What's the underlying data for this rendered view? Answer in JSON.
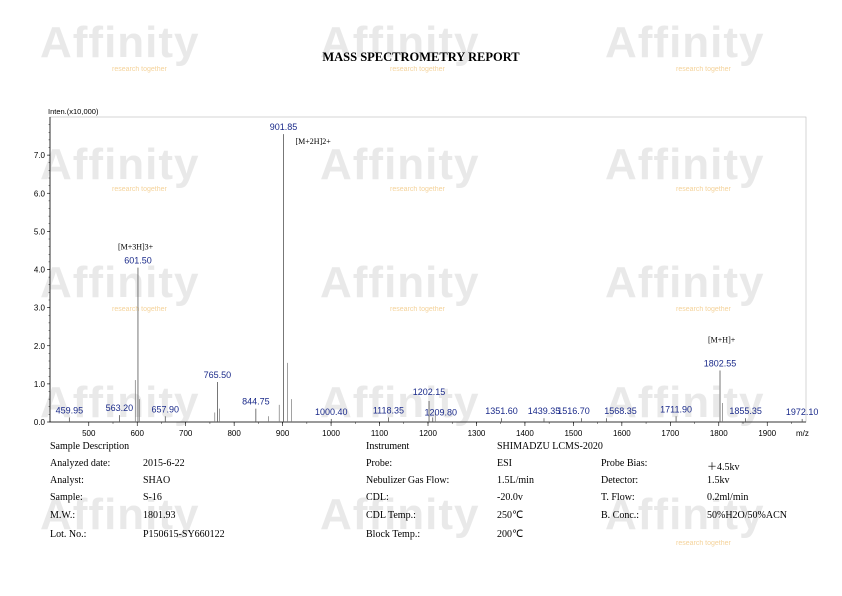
{
  "report": {
    "title": "MASS SPECTROMETRY REPORT"
  },
  "watermark": {
    "brand": "Affinity",
    "tagline": "research together"
  },
  "chart_data": {
    "type": "line",
    "ylabel": "Inten.(x10,000)",
    "xlabel": "m/z",
    "xlim": [
      420,
      1980
    ],
    "ylim": [
      0,
      8.0
    ],
    "x_ticks": [
      500,
      600,
      700,
      800,
      900,
      1000,
      1100,
      1200,
      1300,
      1400,
      1500,
      1600,
      1700,
      1800,
      1900
    ],
    "y_ticks": [
      0.0,
      1.0,
      2.0,
      3.0,
      4.0,
      5.0,
      6.0,
      7.0
    ],
    "y_tick_labels": [
      "0.0",
      "1.0",
      "2.0",
      "3.0",
      "4.0",
      "5.0",
      "6.0",
      "7.0"
    ],
    "labeled_peaks": [
      {
        "mz": 459.95,
        "intensity": 0.12,
        "label": "459.95"
      },
      {
        "mz": 563.2,
        "intensity": 0.18,
        "label": "563.20"
      },
      {
        "mz": 601.5,
        "intensity": 4.05,
        "label": "601.50",
        "annotation": "[M+3H]3+"
      },
      {
        "mz": 657.9,
        "intensity": 0.15,
        "label": "657.90"
      },
      {
        "mz": 765.5,
        "intensity": 1.05,
        "label": "765.50"
      },
      {
        "mz": 844.75,
        "intensity": 0.35,
        "label": "844.75"
      },
      {
        "mz": 901.85,
        "intensity": 7.55,
        "label": "901.85",
        "annotation": "[M+2H]2+"
      },
      {
        "mz": 1000.4,
        "intensity": 0.08,
        "label": "1000.40"
      },
      {
        "mz": 1118.35,
        "intensity": 0.12,
        "label": "1118.35"
      },
      {
        "mz": 1202.15,
        "intensity": 0.55,
        "label": "1202.15"
      },
      {
        "mz": 1209.8,
        "intensity": 0.12,
        "label": "1209.80"
      },
      {
        "mz": 1351.6,
        "intensity": 0.1,
        "label": "1351.60"
      },
      {
        "mz": 1439.35,
        "intensity": 0.1,
        "label": "1439.35"
      },
      {
        "mz": 1516.7,
        "intensity": 0.1,
        "label": "1516.70"
      },
      {
        "mz": 1568.35,
        "intensity": 0.1,
        "label": "1568.35"
      },
      {
        "mz": 1711.9,
        "intensity": 0.15,
        "label": "1711.90"
      },
      {
        "mz": 1802.55,
        "intensity": 1.35,
        "label": "1802.55",
        "annotation": "[M+H]+"
      },
      {
        "mz": 1855.35,
        "intensity": 0.1,
        "label": "1855.35"
      },
      {
        "mz": 1972.1,
        "intensity": 0.08,
        "label": "1972.10"
      }
    ],
    "minor_peaks": [
      {
        "mz": 596.0,
        "intensity": 1.1
      },
      {
        "mz": 604.5,
        "intensity": 0.6
      },
      {
        "mz": 760.0,
        "intensity": 0.25
      },
      {
        "mz": 770.0,
        "intensity": 0.35
      },
      {
        "mz": 871.0,
        "intensity": 0.15
      },
      {
        "mz": 893.0,
        "intensity": 0.45
      },
      {
        "mz": 910.0,
        "intensity": 1.55
      },
      {
        "mz": 918.0,
        "intensity": 0.6
      },
      {
        "mz": 1215.0,
        "intensity": 0.25
      },
      {
        "mz": 1808.0,
        "intensity": 0.5
      }
    ]
  },
  "sample_description": {
    "heading": "Sample Description",
    "rows": [
      {
        "label": "Analyzed date:",
        "value": "2015-6-22"
      },
      {
        "label": "Analyst:",
        "value": "SHAO"
      },
      {
        "label": "Sample:",
        "value": "S-16"
      },
      {
        "label": "M.W.:",
        "value": "1801.93"
      },
      {
        "label": "Lot. No.:",
        "value": "P150615-SY660122"
      }
    ]
  },
  "instrument": {
    "heading": "Instrument",
    "model": "SHIMADZU LCMS-2020",
    "rows_left": [
      {
        "label": "Probe:",
        "value": "ESI"
      },
      {
        "label": "Nebulizer Gas Flow:",
        "value": "1.5L/min"
      },
      {
        "label": "CDL:",
        "value": "-20.0v"
      },
      {
        "label": "CDL Temp.:",
        "value": "250℃"
      },
      {
        "label": "Block Temp.:",
        "value": "200℃"
      }
    ],
    "rows_right": [
      {
        "label": "Probe Bias:",
        "value": "＋4.5kv"
      },
      {
        "label": "Detector:",
        "value": "1.5kv"
      },
      {
        "label": "T. Flow:",
        "value": "0.2ml/min"
      },
      {
        "label": "B. Conc.:",
        "value": "50%H2O/50%ACN"
      }
    ]
  }
}
